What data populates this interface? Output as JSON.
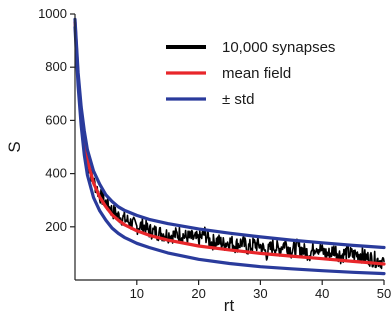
{
  "chart_data": {
    "type": "line",
    "title": "",
    "xlabel": "rt",
    "ylabel": "S",
    "xlim": [
      0,
      50
    ],
    "ylim": [
      0,
      1000
    ],
    "xticks": [
      10,
      20,
      30,
      40,
      50
    ],
    "yticks": [
      200,
      400,
      600,
      800,
      1000
    ],
    "xtick_labels": [
      "10",
      "20",
      "30",
      "40",
      "50"
    ],
    "ytick_labels": [
      "200",
      "400",
      "600",
      "800",
      "1000"
    ],
    "grid": false,
    "legend_position": "top-right",
    "series": [
      {
        "name": "10,000 synapses",
        "color": "#000000",
        "style": "noisy",
        "x": [
          0,
          0.5,
          1,
          1.5,
          2,
          3,
          4,
          5,
          6,
          7,
          8,
          9,
          10,
          11,
          12,
          13,
          14,
          15,
          16,
          17,
          18,
          19,
          20,
          21,
          22,
          23,
          24,
          25,
          26,
          27,
          28,
          29,
          30,
          31,
          32,
          33,
          34,
          35,
          36,
          37,
          38,
          39,
          40,
          41,
          42,
          43,
          44,
          45,
          46,
          47,
          48,
          49,
          50
        ],
        "y": [
          980,
          760,
          600,
          500,
          440,
          370,
          320,
          290,
          260,
          240,
          230,
          215,
          200,
          205,
          185,
          180,
          175,
          170,
          168,
          175,
          160,
          158,
          150,
          175,
          140,
          148,
          135,
          145,
          130,
          142,
          120,
          135,
          130,
          100,
          130,
          115,
          140,
          108,
          125,
          110,
          100,
          130,
          108,
          95,
          115,
          90,
          105,
          92,
          100,
          85,
          80,
          75,
          70
        ]
      },
      {
        "name": "mean field",
        "color": "#e8262a",
        "style": "smooth",
        "x": [
          0,
          0.5,
          1,
          1.5,
          2,
          3,
          4,
          5,
          6,
          7,
          8,
          10,
          12,
          15,
          20,
          25,
          30,
          35,
          40,
          45,
          50
        ],
        "y": [
          970,
          760,
          620,
          520,
          450,
          365,
          312,
          275,
          245,
          225,
          208,
          185,
          168,
          150,
          128,
          113,
          100,
          90,
          80,
          70,
          60
        ]
      },
      {
        "name": "± std",
        "color": "#2a3b9c",
        "style": "smooth",
        "x": [
          0,
          0.5,
          1,
          1.5,
          2,
          3,
          4,
          5,
          6,
          7,
          8,
          10,
          12,
          15,
          20,
          25,
          30,
          35,
          40,
          45,
          50
        ],
        "y": [
          980,
          780,
          650,
          560,
          490,
          410,
          360,
          320,
          295,
          275,
          262,
          243,
          228,
          212,
          192,
          176,
          162,
          150,
          140,
          130,
          122
        ]
      },
      {
        "name": "",
        "color": "#2a3b9c",
        "style": "smooth",
        "x": [
          0,
          0.5,
          1,
          1.5,
          2,
          3,
          4,
          5,
          6,
          7,
          8,
          10,
          12,
          15,
          20,
          25,
          30,
          35,
          40,
          45,
          50
        ],
        "y": [
          950,
          730,
          580,
          470,
          395,
          310,
          260,
          225,
          195,
          175,
          160,
          138,
          122,
          102,
          78,
          62,
          50,
          42,
          35,
          29,
          24
        ]
      }
    ]
  }
}
